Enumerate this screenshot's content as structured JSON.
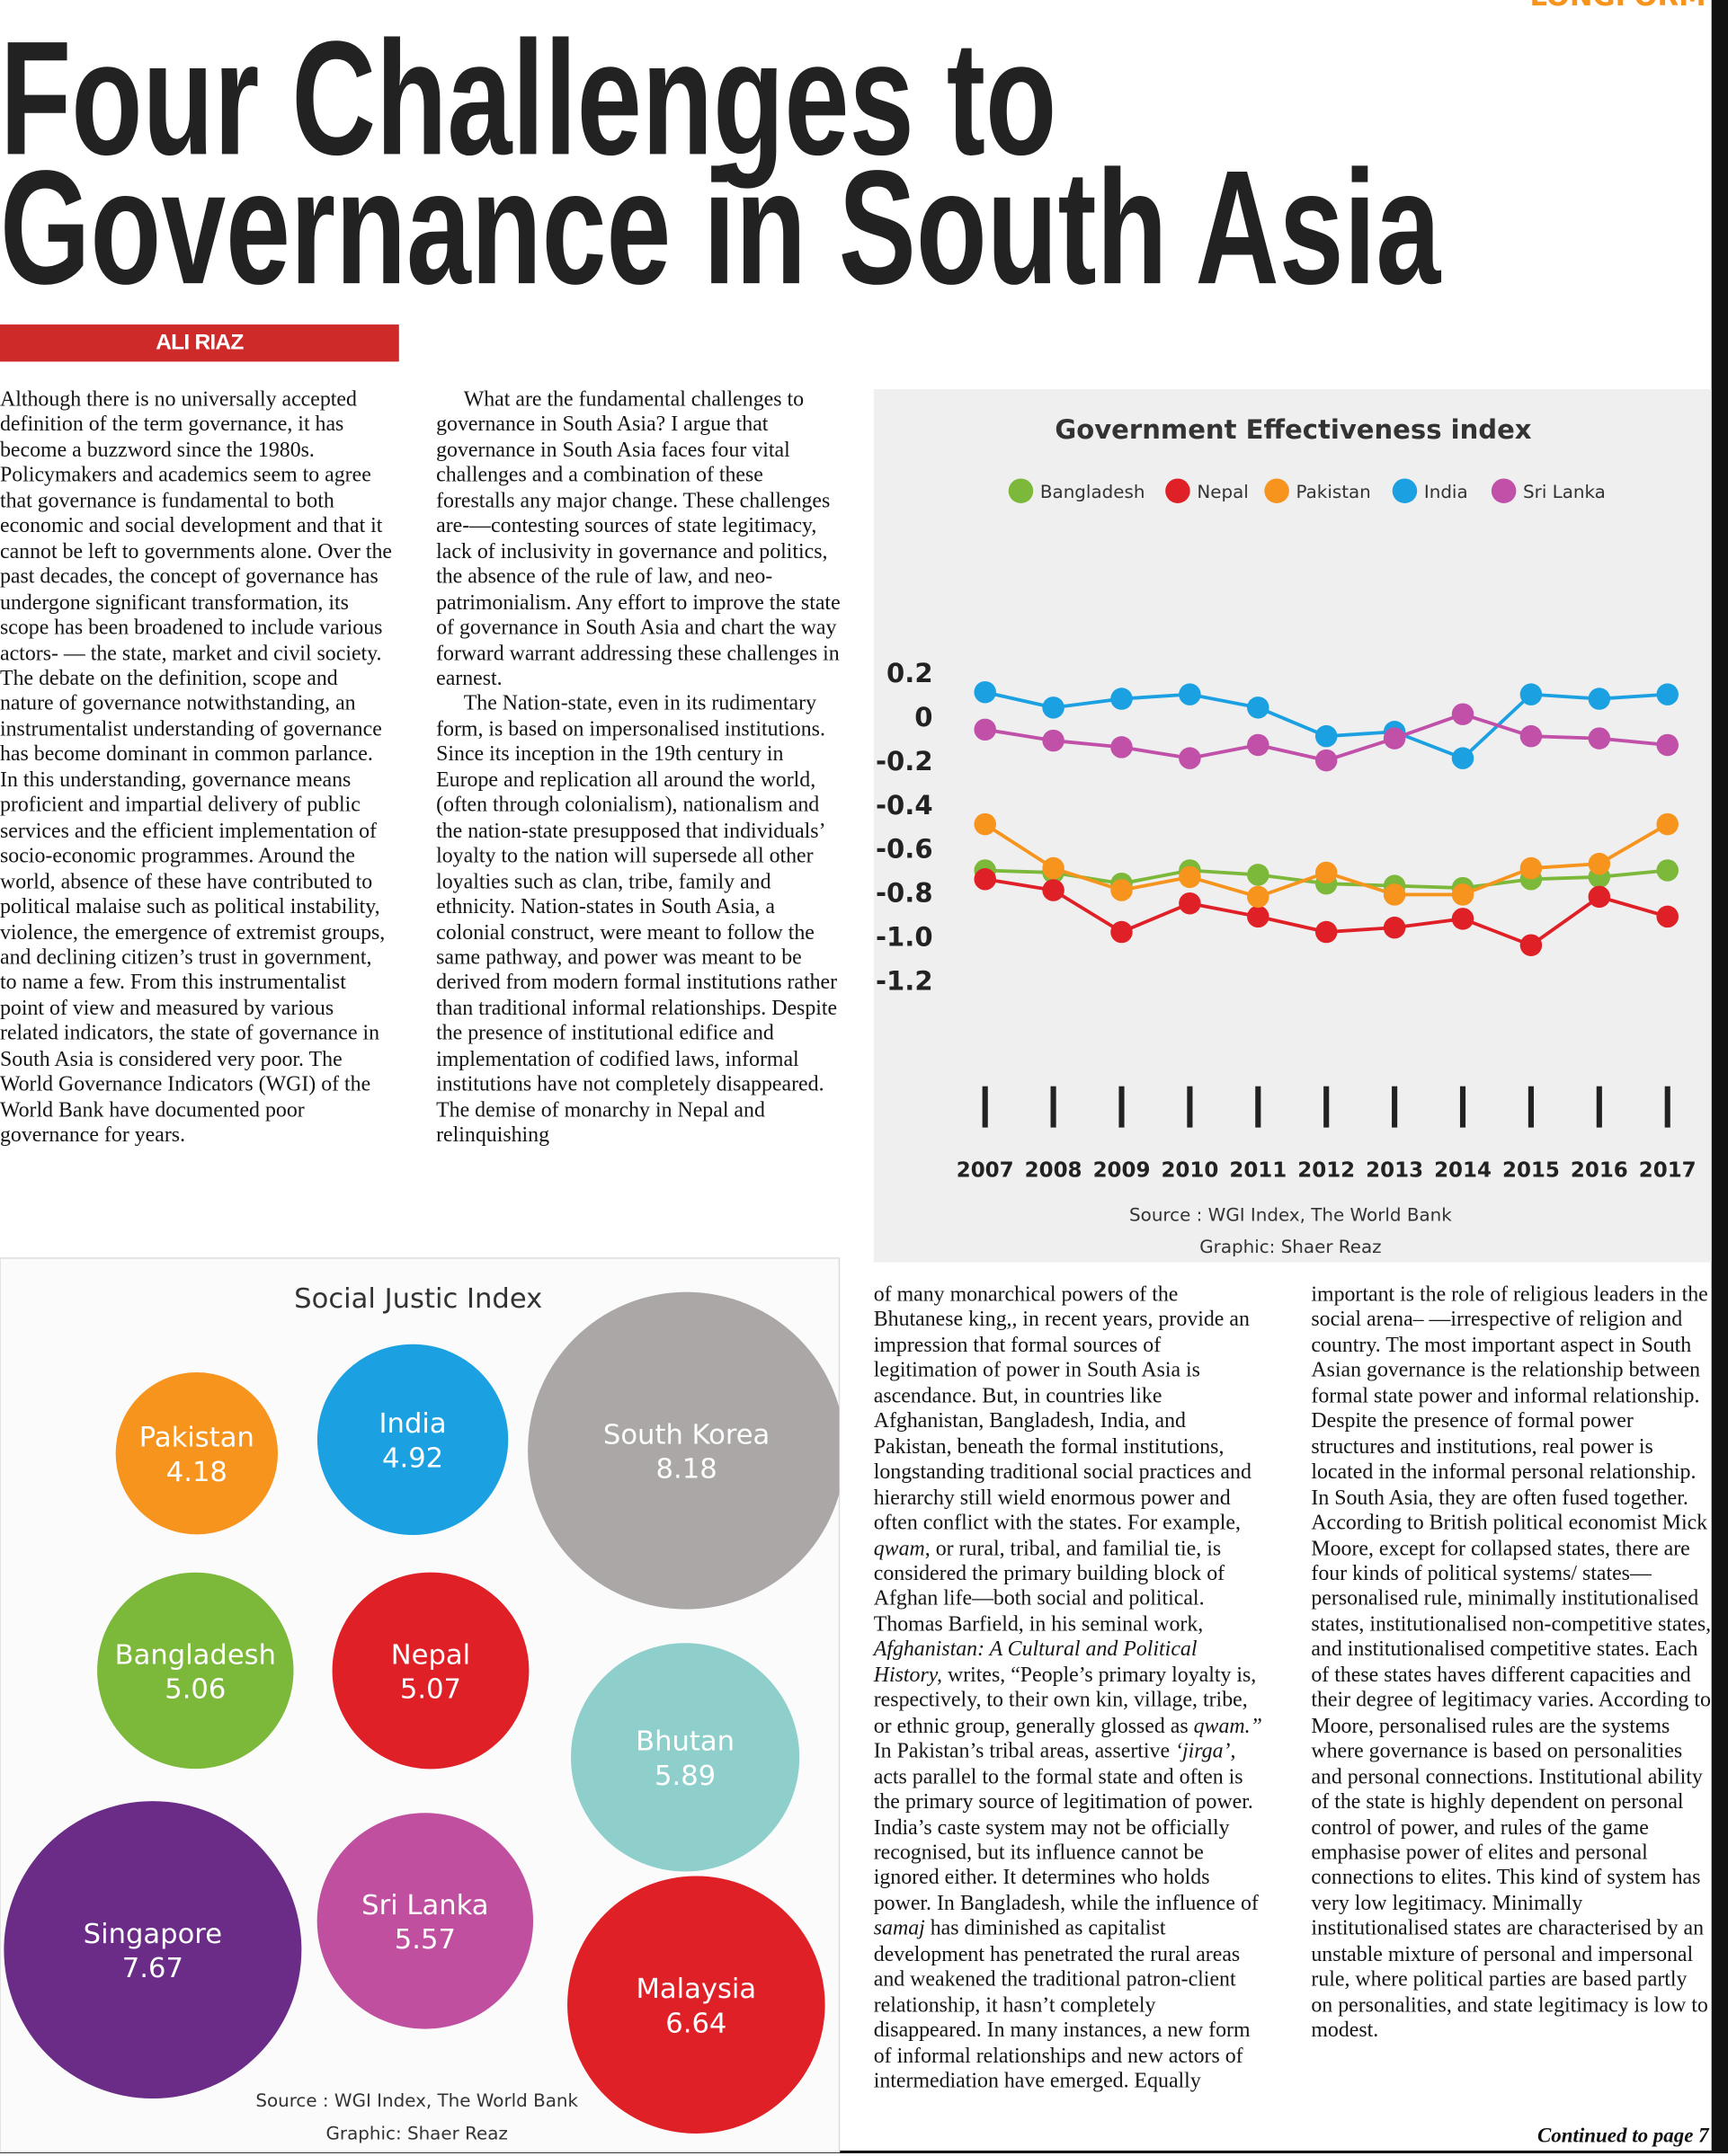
{
  "header": {
    "section": "LONGFORM",
    "title_lines": [
      "Four Challenges to",
      "Governance in South Asia"
    ],
    "author": "ALI RIAZ"
  },
  "columns": [
    {
      "paragraphs": [
        [
          "Although there is no universally accepted definition of the term governance, it has become a buzzword since the 1980s. Policymakers and academics seem to agree that governance is fundamental to both economic and social development and that it cannot be left to governments alone. Over the past decades, the concept of governance has undergone significant transformation, its scope has been broadened to include various actors- — the state, market and civil society. The debate on the definition, scope and nature of governance notwithstanding, an instrumentalist understanding of governance has become dominant in common parlance. In this understanding, governance means proficient and impartial delivery of public services and the efficient implementation of socio-economic programmes. Around the world, absence of these have contributed to political malaise such as political instability, violence, the emergence of extremist groups, and declining citizen’s trust in government, to name a few. From this instrumentalist point of view and measured by various related indicators, the state of governance in South Asia is considered very poor. The World Governance Indicators (WGI) of the World Bank have documented poor governance for years."
        ]
      ]
    },
    {
      "paragraphs": [
        [
          "What are the fundamental challenges to governance in South Asia? I argue that governance in South Asia faces four vital challenges and a combination of these forestalls any major change. These challenges are-—contesting sources of state legitimacy, lack of inclusivity in governance and politics, the absence of the rule of law, and neo-patrimonialism. Any effort to improve the state of governance in South Asia and chart the way forward warrant addressing these challenges in earnest."
        ],
        [
          "The Nation-state, even in its rudimentary form, is based on impersonalised institutions. Since its inception in the 19th century in Europe and replication all around the world, (often through colonialism), nationalism and the nation-state presupposed that individuals’ loyalty to the nation will supersede all other loyalties such as clan, tribe, family and ethnicity. Nation-states in South Asia, a colonial construct, were meant to follow the same pathway, and power was meant to be derived from modern formal institutions rather than traditional informal relationships. Despite the presence of institutional edifice and implementation of codified laws, informal institutions have not completely disappeared. The demise of monarchy in Nepal and relinquishing"
        ]
      ]
    },
    {
      "paragraphs": [
        [
          "of many monarchical powers of the Bhutanese king,, in recent years, provide an impression that formal sources of legitimation of power in South Asia is ascendance. But, in countries like Afghanistan, Bangladesh, India, and Pakistan, beneath the formal institutions, longstanding traditional social practices and hierarchy still wield enormous power and often conflict with the states. For example, ",
          {
            "text": "qwam",
            "italic": true
          },
          ", or rural, tribal, and familial tie, is considered the primary building block of Afghan life—both social and political. Thomas Barfield, in his seminal work, ",
          {
            "text": "Afghanistan: A Cultural and Political History,",
            "italic": true
          },
          " writes, “People’s primary loyalty is, respectively, to their own kin, village, tribe, or ethnic group, generally glossed as ",
          {
            "text": "qwam.”",
            "italic": true
          },
          " In Pakistan’s tribal areas, assertive ",
          {
            "text": "‘jirga’",
            "italic": true
          },
          ", acts parallel to the formal state and often is the primary source of legitimation of power. India’s caste system may not be officially recognised, but its influence cannot be ignored either. It determines who holds power. In Bangladesh, while the influence of ",
          {
            "text": "samaj",
            "italic": true
          },
          " has diminished as capitalist development has penetrated the rural areas and weakened the traditional patron-client relationship, it hasn’t completely disappeared. In many instances, a new form of informal relationships and new actors of intermediation have emerged. Equally"
        ]
      ]
    },
    {
      "paragraphs": [
        [
          "important is the role of religious leaders in the social arena– —irrespective of religion and country. The most important aspect in South Asian governance is the relationship between formal state power and informal relationship. Despite the presence of formal power structures and institutions, real power is located in the informal personal relationship. In South Asia, they are often fused together. According to British political economist Mick Moore, except for collapsed states, there are four kinds of political systems/ states—personalised rule, minimally institutionalised states, institutionalised non-competitive states, and institutionalised competitive states. Each of these states haves different capacities and their degree of legitimacy varies. According to Moore, personalised rules are the systems where governance is based on personalities and personal connections. Institutional ability of the state is highly dependent on personal control of power, and rules of the game emphasise power of elites and personal connections to elites. This kind of system has very low legitimacy. Minimally institutionalised states are characterised by an unstable mixture of personal and impersonal rule, where political parties are based partly on personalities, and state legitimacy is low to modest."
        ]
      ]
    }
  ],
  "footer": "Continued to page 7",
  "chart_data": [
    {
      "type": "line",
      "title": "Government Effectiveness index",
      "categories": [
        "2007",
        "2008",
        "2009",
        "2010",
        "2011",
        "2012",
        "2013",
        "2014",
        "2015",
        "2016",
        "2017"
      ],
      "series": [
        {
          "name": "Bangladesh",
          "color": "#7cb83a",
          "values": [
            -0.7,
            -0.71,
            -0.76,
            -0.7,
            -0.72,
            -0.76,
            -0.77,
            -0.78,
            -0.74,
            -0.73,
            -0.7
          ]
        },
        {
          "name": "Nepal",
          "color": "#e02027",
          "values": [
            -0.74,
            -0.79,
            -0.98,
            -0.85,
            -0.91,
            -0.98,
            -0.96,
            -0.92,
            -1.04,
            -0.82,
            -0.91
          ]
        },
        {
          "name": "Pakistan",
          "color": "#f7941d",
          "values": [
            -0.49,
            -0.69,
            -0.79,
            -0.73,
            -0.82,
            -0.71,
            -0.81,
            -0.81,
            -0.69,
            -0.67,
            -0.49
          ]
        },
        {
          "name": "India",
          "color": "#1ba1e2",
          "values": [
            0.11,
            0.04,
            0.08,
            0.1,
            0.04,
            -0.09,
            -0.07,
            -0.19,
            0.1,
            0.08,
            0.1
          ]
        },
        {
          "name": "Sri Lanka",
          "color": "#c050a8",
          "values": [
            -0.06,
            -0.11,
            -0.14,
            -0.19,
            -0.13,
            -0.2,
            -0.1,
            0.01,
            -0.09,
            -0.1,
            -0.13
          ]
        }
      ],
      "ylim": [
        -1.2,
        0.2
      ],
      "yticks": [
        0.2,
        0,
        -0.2,
        -0.4,
        -0.6,
        -0.8,
        {
          "value": -1,
          "label": "-1.0"
        },
        -1.2
      ],
      "source": "Source : WGI Index, The World Bank",
      "credit": "Graphic: Shaer Reaz"
    },
    {
      "type": "bubble",
      "title": "Social Justic Index",
      "categories": [
        "Pakistan",
        "India",
        "South Korea",
        "Bangladesh",
        "Nepal",
        "Bhutan",
        "Singapore",
        "Sri Lanka",
        "Malaysia"
      ],
      "values": [
        4.18,
        4.92,
        8.18,
        5.06,
        5.07,
        5.89,
        7.67,
        5.57,
        6.64
      ],
      "colors": [
        "#f7941d",
        "#1ba1e2",
        "#aaa7a6",
        "#7cb83a",
        "#e02027",
        "#8ecfcc",
        "#6a2c86",
        "#c0509f",
        "#e02027"
      ],
      "source": "Source : WGI Index, The World Bank",
      "credit": "Graphic: Shaer Reaz"
    }
  ]
}
